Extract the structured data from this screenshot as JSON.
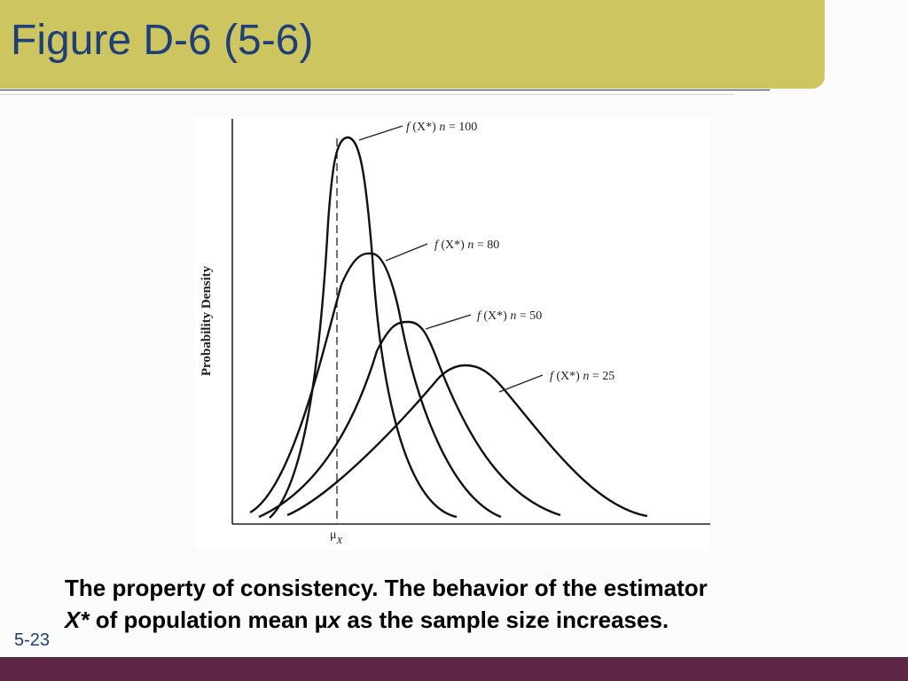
{
  "slide": {
    "title": "Figure D-6 (5-6)",
    "slide_number": "5-23"
  },
  "colors": {
    "title_bar": "#cdc560",
    "title_text": "#1f3f79",
    "footer_bar": "#5d2646"
  },
  "figure": {
    "y_axis_label": "Probability Density",
    "x_axis_marker": {
      "symbol": "μ",
      "subscript": "X"
    },
    "curves": [
      {
        "label_prefix": "f",
        "label_arg": " (X*) ",
        "label_n": "n",
        "label_rest": " = 100"
      },
      {
        "label_prefix": "f",
        "label_arg": " (X*) ",
        "label_n": "n",
        "label_rest": " = 80"
      },
      {
        "label_prefix": "f",
        "label_arg": " (X*) ",
        "label_n": "n",
        "label_rest": " = 50"
      },
      {
        "label_prefix": "f",
        "label_arg": " (X*) ",
        "label_n": "n",
        "label_rest": " = 25"
      }
    ]
  },
  "caption": {
    "line1": "The property of consistency. The behavior of the estimator",
    "var": "X*",
    "middle": " of population mean µ",
    "sub": "x",
    "end": " as the sample size increases."
  }
}
